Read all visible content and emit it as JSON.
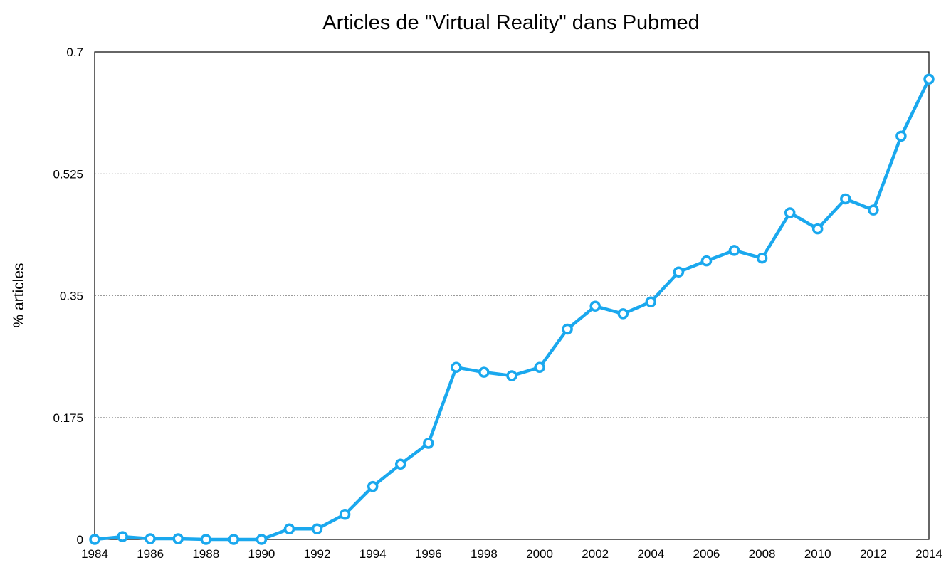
{
  "chart_data": {
    "type": "line",
    "title": "Articles de \"Virtual Reality\" dans Pubmed",
    "xlabel": "",
    "ylabel": "% articles",
    "xlim": [
      1984,
      2014
    ],
    "ylim": [
      0,
      0.7
    ],
    "x_ticks": [
      "1984",
      "1986",
      "1988",
      "1990",
      "1992",
      "1994",
      "1996",
      "1998",
      "2000",
      "2002",
      "2004",
      "2006",
      "2008",
      "2010",
      "2012",
      "2014"
    ],
    "y_ticks": [
      "0",
      "0.175",
      "0.35",
      "0.525",
      "0.7"
    ],
    "y_tick_values": [
      0,
      0.175,
      0.35,
      0.525,
      0.7
    ],
    "grid": "horizontal dotted at y ticks",
    "legend": "none",
    "series": [
      {
        "color": "#1aa8ee",
        "x": [
          1984,
          1985,
          1986,
          1987,
          1988,
          1989,
          1990,
          1991,
          1992,
          1993,
          1994,
          1995,
          1996,
          1997,
          1998,
          1999,
          2000,
          2001,
          2002,
          2003,
          2004,
          2005,
          2006,
          2007,
          2008,
          2009,
          2010,
          2011,
          2012,
          2013,
          2014
        ],
        "values": [
          0.0,
          0.004,
          0.001,
          0.001,
          0.0,
          0.0,
          0.0,
          0.015,
          0.015,
          0.036,
          0.076,
          0.108,
          0.138,
          0.247,
          0.24,
          0.235,
          0.247,
          0.302,
          0.335,
          0.324,
          0.341,
          0.384,
          0.4,
          0.415,
          0.404,
          0.469,
          0.446,
          0.489,
          0.473,
          0.579,
          0.661
        ]
      }
    ]
  }
}
